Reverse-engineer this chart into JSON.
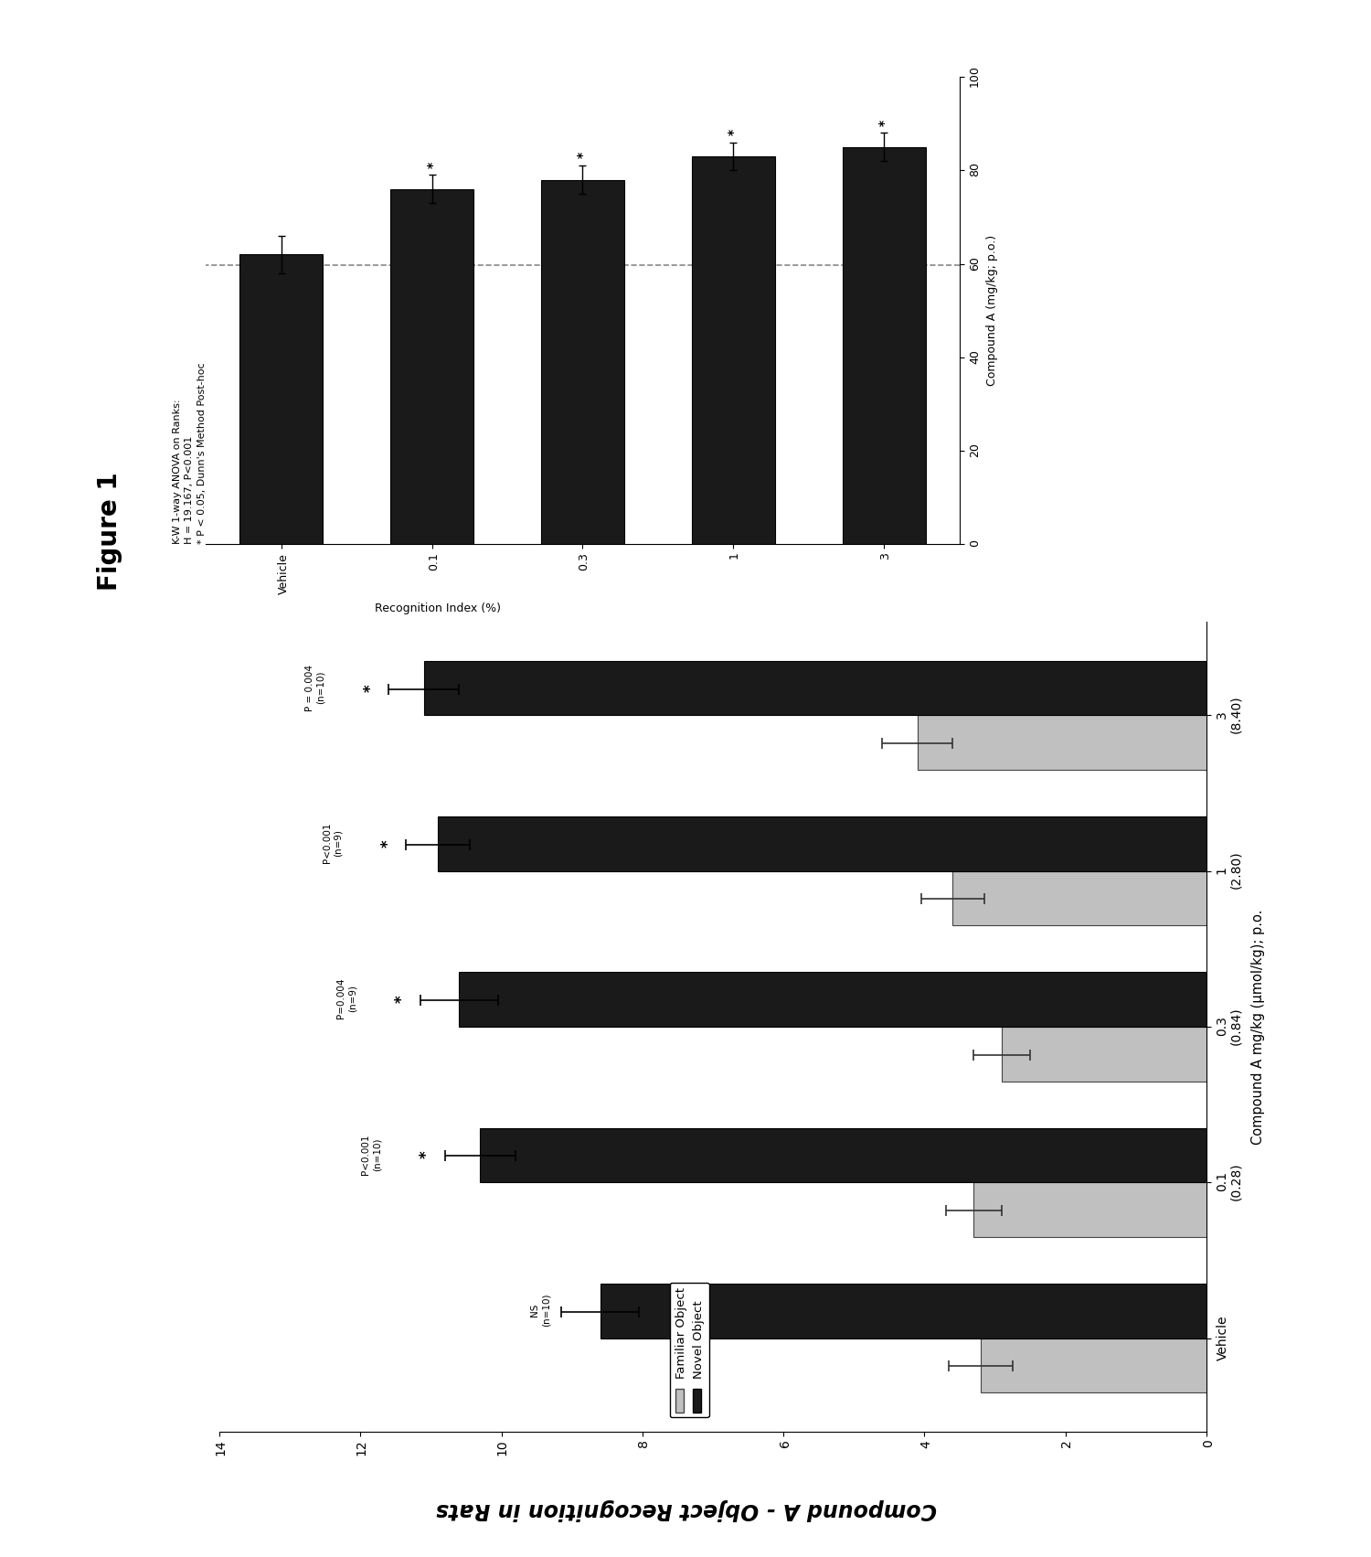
{
  "figure_label": "Figure 1",
  "title": "Compound A - Object Recognition in Rats",
  "main_chart": {
    "categories": [
      "Vehicle",
      "0.1\n(0.28)",
      "0.3\n(0.84)",
      "1\n(2.80)",
      "3\n(8.40)"
    ],
    "familiar_values": [
      3.2,
      3.3,
      2.9,
      3.6,
      4.1
    ],
    "familiar_errors": [
      0.45,
      0.4,
      0.4,
      0.45,
      0.5
    ],
    "novel_values": [
      8.6,
      10.3,
      10.6,
      10.9,
      11.1
    ],
    "novel_errors": [
      0.55,
      0.5,
      0.55,
      0.45,
      0.5
    ],
    "familiar_color": "#c0c0c0",
    "novel_color": "#1a1a1a",
    "xlabel": "Compound A mg/kg (μmol/kg); p.o.",
    "xlim": [
      0,
      14
    ],
    "xticks": [
      0,
      2,
      4,
      6,
      8,
      10,
      12,
      14
    ],
    "annotations": [
      {
        "idx": 0,
        "sig_text": "NS\n(n=10)",
        "star": false
      },
      {
        "idx": 1,
        "sig_text": "P<0.001\n(n=10)",
        "star": true
      },
      {
        "idx": 2,
        "sig_text": "P=0.004\n(n=9)",
        "star": true
      },
      {
        "idx": 3,
        "sig_text": "P<0.001\n(n=9)",
        "star": true
      },
      {
        "idx": 4,
        "sig_text": "P = 0.004\n(n=10)",
        "star": true
      }
    ],
    "ri_label": "Recognition Index (%)"
  },
  "inset_chart": {
    "categories": [
      "Vehicle",
      "0.1",
      "0.3",
      "1",
      "3"
    ],
    "xlabel": "Compound A (mg/kg; p.o.)",
    "values": [
      62,
      76,
      78,
      83,
      85
    ],
    "errors": [
      4,
      3,
      3,
      3,
      3
    ],
    "bar_color": "#1a1a1a",
    "xlim": [
      0,
      100
    ],
    "xticks": [
      0,
      20,
      40,
      60,
      80,
      100
    ],
    "dashed_line_x": 60,
    "asterisks": [
      false,
      true,
      true,
      true,
      true
    ],
    "stats_text": "K-W 1-way ANOVA on Ranks:\nH = 19.167, P<0.001\n* P < 0.05, Dunn's Method Post-hoc"
  },
  "bg_color": "#ffffff"
}
